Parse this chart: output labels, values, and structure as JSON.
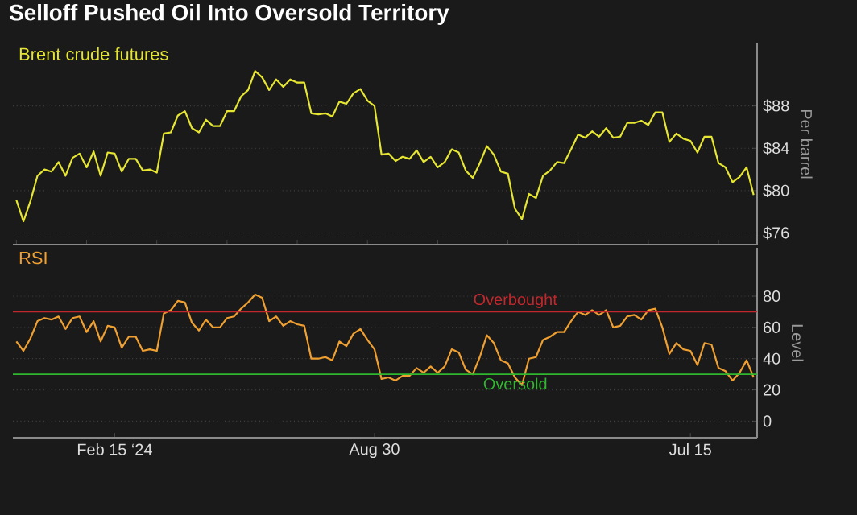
{
  "chart_data": [
    {
      "type": "line",
      "title": "Selloff Pushed Oil Into Oversold Territory",
      "ylabel": "Per barrel",
      "categories": [
        null,
        null,
        null,
        null,
        null,
        null,
        null,
        null,
        null,
        null,
        null,
        null,
        null,
        null,
        null,
        null,
        null,
        null,
        null,
        null,
        null,
        null,
        null,
        null,
        null,
        null,
        null,
        null,
        null,
        null,
        null,
        null,
        null,
        null,
        null,
        null,
        null,
        null,
        null,
        null,
        null,
        null,
        null,
        null,
        null,
        null,
        null,
        null,
        null,
        null,
        null,
        null,
        null,
        null,
        null,
        null,
        null,
        null,
        null,
        null,
        null,
        null,
        null,
        null,
        null,
        null,
        null,
        null,
        null,
        null,
        null,
        null,
        null,
        null,
        null,
        null,
        null,
        null,
        null,
        null,
        null,
        null,
        null,
        null,
        null,
        null,
        null,
        null,
        null,
        null,
        null,
        null,
        null,
        null,
        null,
        null,
        null,
        null,
        null,
        null,
        null,
        null,
        null,
        null,
        null,
        null
      ],
      "ylim": [
        74.9,
        93.9
      ],
      "yticks": [
        {
          "value": 76,
          "label": "$76"
        },
        {
          "value": 80,
          "label": "$80"
        },
        {
          "value": 84,
          "label": "$84"
        },
        {
          "value": 88,
          "label": "$88"
        }
      ],
      "tick_labels": "y",
      "grid": "y",
      "legend": "top left",
      "series": [
        {
          "name": "Brent crude futures",
          "color": "#e6e632",
          "values": [
            79.1,
            77.1,
            79.0,
            81.4,
            82.0,
            81.8,
            82.7,
            81.4,
            83.1,
            83.5,
            82.2,
            83.7,
            81.4,
            83.6,
            83.5,
            81.8,
            83.0,
            83.0,
            81.9,
            82.0,
            81.7,
            85.4,
            85.5,
            87.1,
            87.5,
            85.9,
            85.5,
            86.7,
            86.1,
            86.1,
            87.5,
            87.5,
            88.9,
            89.5,
            91.3,
            90.7,
            89.5,
            90.5,
            89.8,
            90.5,
            90.2,
            90.2,
            87.3,
            87.2,
            87.3,
            87.0,
            88.4,
            88.2,
            89.2,
            89.6,
            88.5,
            88.0,
            83.4,
            83.5,
            82.8,
            83.2,
            83.0,
            83.8,
            82.7,
            83.2,
            82.2,
            82.7,
            83.9,
            83.6,
            81.9,
            81.2,
            82.6,
            84.2,
            83.4,
            81.8,
            81.6,
            78.3,
            77.3,
            79.7,
            79.3,
            81.4,
            81.9,
            82.7,
            82.6,
            83.9,
            85.3,
            85.0,
            85.6,
            85.1,
            85.9,
            85.0,
            85.1,
            86.4,
            86.4,
            86.6,
            86.2,
            87.4,
            87.4,
            84.6,
            85.4,
            84.9,
            84.7,
            83.6,
            85.1,
            85.1,
            82.6,
            82.2,
            80.8,
            81.3,
            82.2,
            79.6
          ]
        }
      ]
    },
    {
      "type": "line",
      "ylabel": "Level",
      "categories": [
        null,
        null,
        null,
        null,
        null,
        null,
        null,
        null,
        null,
        null,
        null,
        null,
        null,
        null,
        "Feb 15 ‘24",
        null,
        null,
        null,
        null,
        null,
        null,
        null,
        null,
        null,
        null,
        null,
        null,
        null,
        null,
        null,
        null,
        null,
        null,
        null,
        null,
        null,
        null,
        null,
        null,
        null,
        null,
        null,
        null,
        null,
        null,
        null,
        null,
        null,
        null,
        null,
        null,
        "Aug 30",
        null,
        null,
        null,
        null,
        null,
        null,
        null,
        null,
        null,
        null,
        null,
        null,
        null,
        null,
        null,
        null,
        null,
        null,
        null,
        null,
        null,
        null,
        null,
        null,
        null,
        null,
        null,
        null,
        null,
        null,
        null,
        null,
        null,
        null,
        null,
        null,
        null,
        null,
        null,
        null,
        null,
        null,
        null,
        null,
        "Jul 15",
        null,
        null,
        null,
        null,
        null,
        null,
        null,
        null,
        null
      ],
      "ylim": [
        -10.6,
        110.9
      ],
      "yticks": [
        0,
        20,
        40,
        60,
        80
      ],
      "grid": "y",
      "legend": "top left",
      "ref_lines": [
        {
          "axis": "y",
          "value": 70,
          "label": "Overbought",
          "color": "#c0282d"
        },
        {
          "axis": "y",
          "value": 30,
          "label": "Oversold",
          "color": "#2fb82f"
        }
      ],
      "series": [
        {
          "name": "RSI",
          "color": "#f0a030",
          "values": [
            51,
            45,
            53,
            64,
            66,
            65,
            67,
            59,
            66,
            67,
            57,
            64,
            51,
            61,
            60,
            47,
            54,
            54,
            45,
            46,
            45,
            69,
            71,
            77,
            76,
            63,
            58,
            65,
            60,
            60,
            66,
            67,
            72,
            76,
            81,
            79,
            64,
            67,
            61,
            64,
            62,
            61,
            40,
            40,
            41,
            39,
            51,
            48,
            56,
            59,
            52,
            46,
            27,
            28,
            26,
            29,
            29,
            34,
            31,
            35,
            31,
            35,
            46,
            44,
            33,
            30,
            41,
            55,
            50,
            39,
            37,
            28,
            23,
            40,
            41,
            52,
            54,
            57,
            57,
            64,
            70,
            68,
            71,
            68,
            71,
            60,
            61,
            67,
            68,
            65,
            71,
            72,
            60,
            43,
            50,
            46,
            45,
            36,
            50,
            49,
            34,
            32,
            26,
            31,
            39,
            28
          ]
        }
      ]
    }
  ]
}
